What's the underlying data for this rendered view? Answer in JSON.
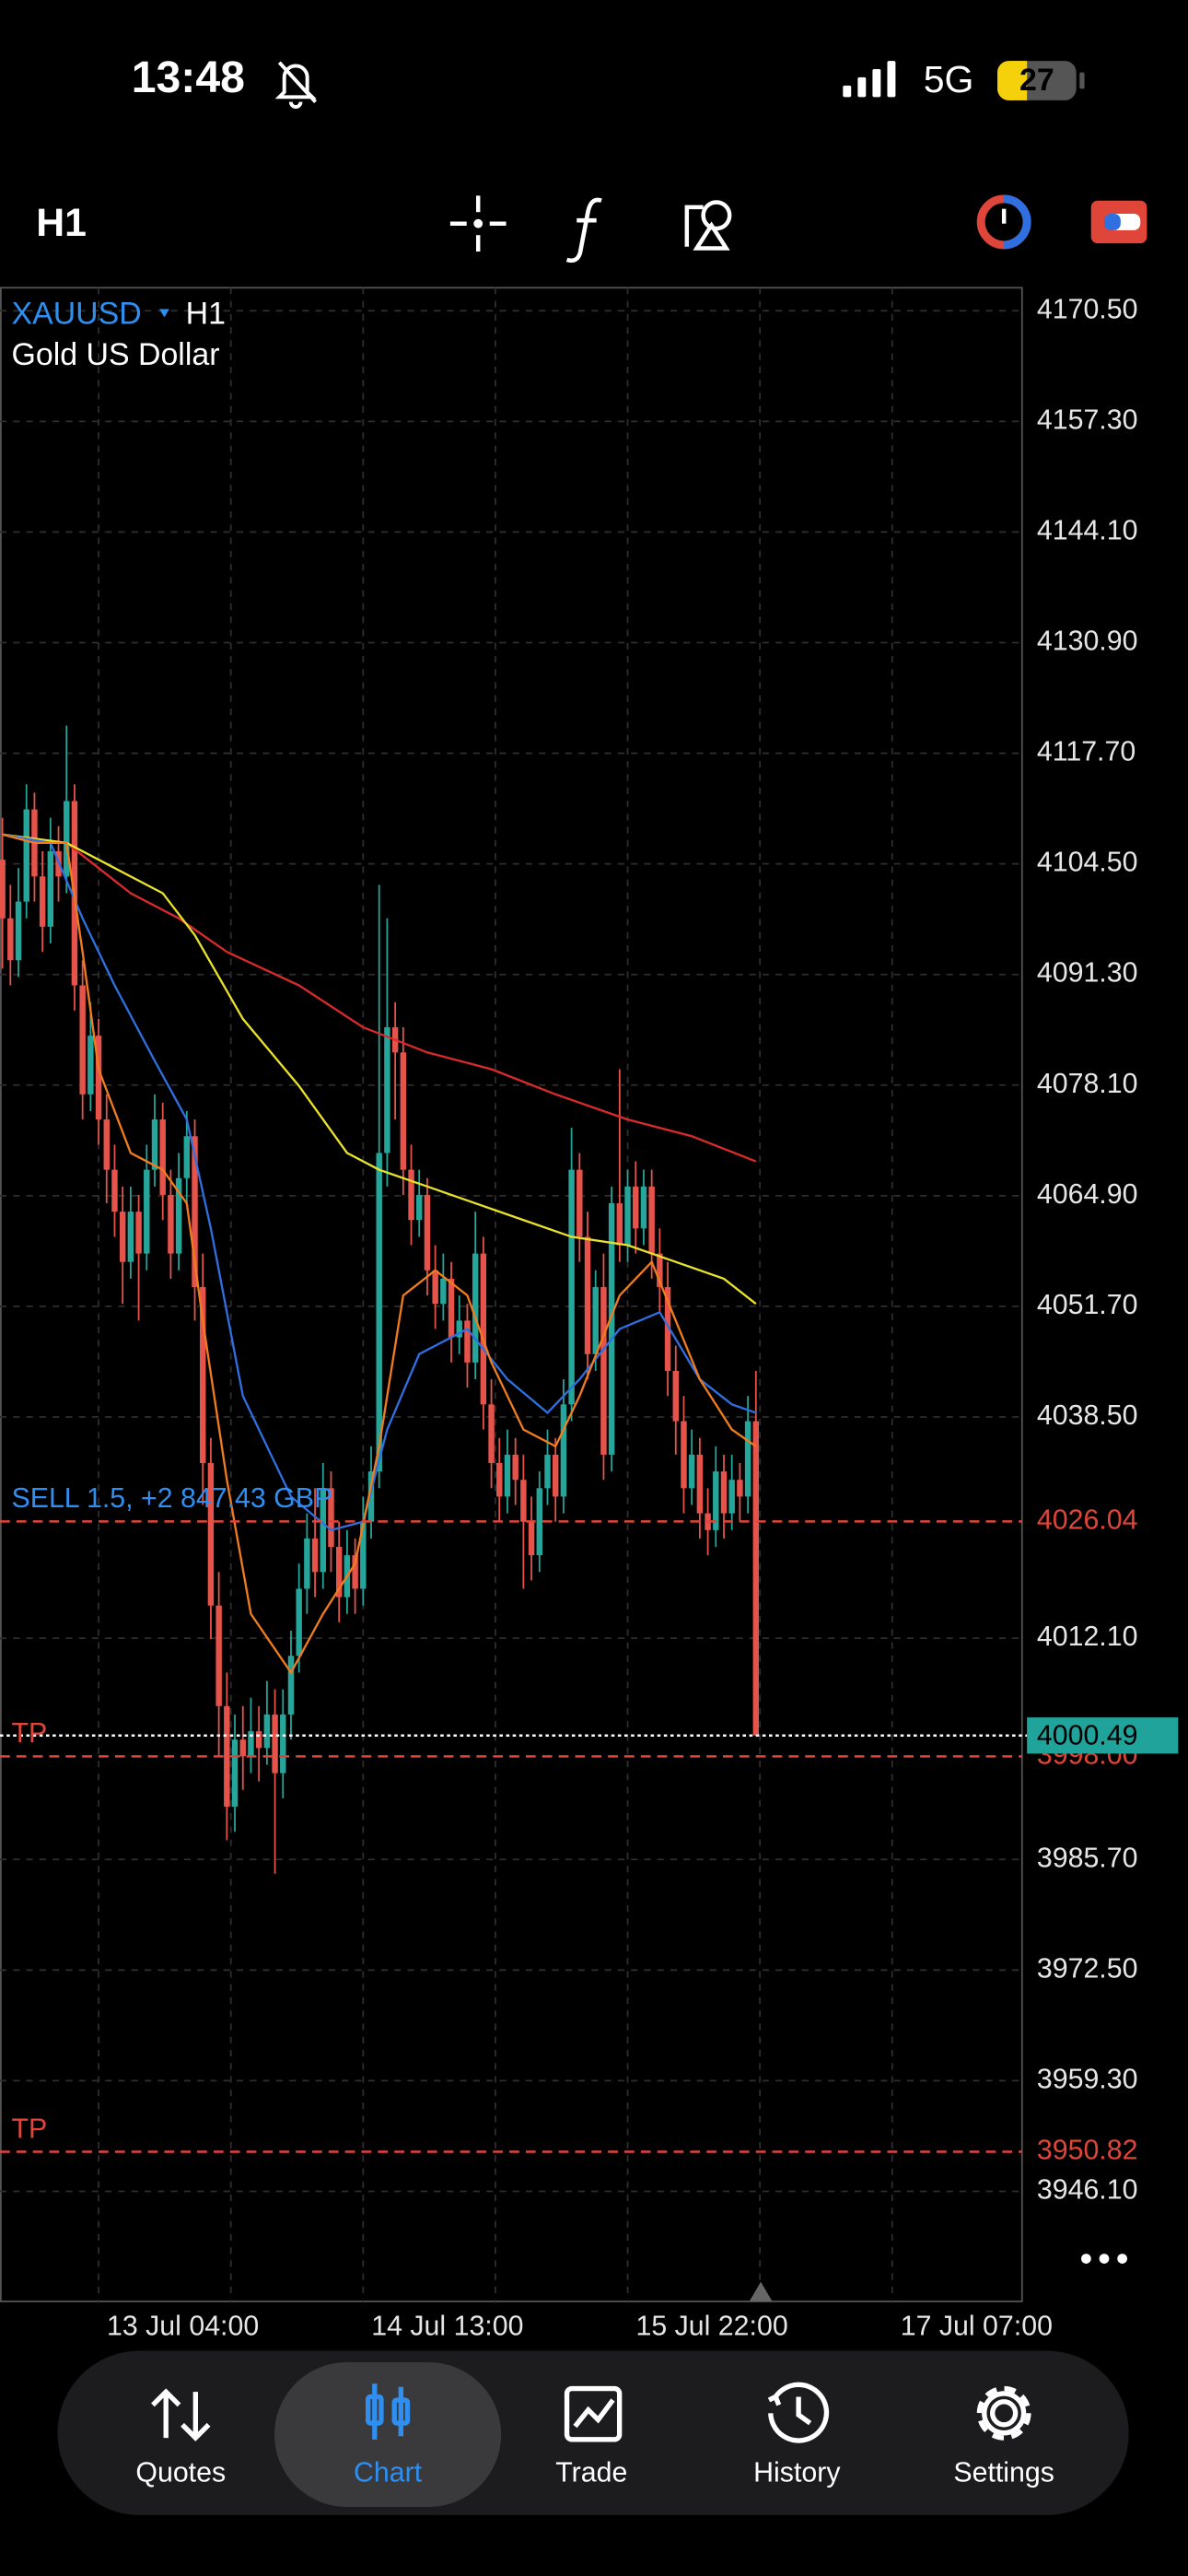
{
  "status_bar": {
    "time": "13:48",
    "network": "5G",
    "battery": "27"
  },
  "toolbar": {
    "timeframe": "H1"
  },
  "chart_data": {
    "type": "candlestick",
    "symbol": "XAUUSD",
    "timeframe": "H1",
    "subtitle": "Gold US Dollar",
    "up_color": "#26a69a",
    "down_color": "#e5534b",
    "grid": true,
    "x": [
      -12,
      -11,
      -10,
      -9,
      -8,
      -7,
      -6,
      -5,
      -4,
      -3,
      -2,
      -1,
      0,
      1,
      2,
      3,
      4,
      5,
      6,
      7,
      8,
      9,
      10,
      11,
      12,
      13,
      14,
      15,
      16,
      17,
      18,
      19,
      20,
      21,
      22,
      23,
      24,
      25,
      26,
      27,
      28,
      29,
      30,
      31,
      32,
      33,
      34,
      35,
      36,
      37,
      38,
      39,
      40,
      41,
      42,
      43,
      44,
      45,
      46,
      47,
      48,
      49,
      50,
      51,
      52,
      53,
      54,
      55,
      56,
      57,
      58,
      59,
      60,
      61,
      62,
      63,
      64,
      65,
      66,
      67,
      68,
      69,
      70,
      71,
      72,
      73,
      74,
      75,
      76,
      77,
      78,
      79,
      80,
      81,
      82
    ],
    "open": [
      4105,
      4098,
      4093,
      4100,
      4111,
      4103,
      4097,
      4106,
      4103,
      4112,
      4090,
      4077,
      4084,
      4074,
      4068,
      4063,
      4057,
      4063,
      4058,
      4068,
      4074,
      4065,
      4058,
      4067,
      4072,
      4054,
      4033,
      4016,
      4004,
      3992,
      4000,
      3998,
      4001,
      3999,
      4003,
      3996,
      4003,
      4010,
      4018,
      4024,
      4020,
      4030,
      4023,
      4017,
      4022,
      4018,
      4026,
      4032,
      4070,
      4085,
      4082,
      4068,
      4062,
      4065,
      4056,
      4052,
      4055,
      4048,
      4050,
      4045,
      4058,
      4040,
      4033,
      4029,
      4034,
      4031,
      4026,
      4022,
      4030,
      4034,
      4029,
      4040,
      4068,
      4060,
      4046,
      4054,
      4034,
      4064,
      4059,
      4066,
      4061,
      4066,
      4058,
      4054,
      4044,
      4038,
      4030,
      4034,
      4027,
      4025,
      4032,
      4027,
      4031,
      4029,
      4038
    ],
    "high": [
      4110,
      4102,
      4104,
      4114,
      4113,
      4106,
      4110,
      4109,
      4121,
      4114,
      4093,
      4088,
      4086,
      4077,
      4071,
      4066,
      4066,
      4065,
      4071,
      4077,
      4076,
      4068,
      4070,
      4075,
      4074,
      4058,
      4036,
      4020,
      4008,
      4003,
      4004,
      4005,
      4004,
      4007,
      4006,
      4006,
      4013,
      4021,
      4027,
      4030,
      4033,
      4032,
      4026,
      4025,
      4024,
      4029,
      4035,
      4102,
      4098,
      4088,
      4085,
      4071,
      4068,
      4067,
      4059,
      4058,
      4057,
      4053,
      4052,
      4063,
      4060,
      4043,
      4036,
      4037,
      4036,
      4034,
      4029,
      4032,
      4037,
      4036,
      4043,
      4073,
      4070,
      4063,
      4056,
      4058,
      4066,
      4080,
      4068,
      4069,
      4068,
      4068,
      4061,
      4057,
      4047,
      4041,
      4037,
      4036,
      4030,
      4035,
      4034,
      4034,
      4033,
      4041,
      4044
    ],
    "low": [
      4092,
      4090,
      4091,
      4098,
      4100,
      4094,
      4095,
      4100,
      4101,
      4087,
      4074,
      4075,
      4071,
      4064,
      4060,
      4052,
      4055,
      4050,
      4056,
      4066,
      4062,
      4055,
      4056,
      4064,
      4050,
      4028,
      4012,
      3998,
      3988,
      3989,
      3994,
      3996,
      3995,
      3997,
      3984,
      3993,
      4000,
      4008,
      4015,
      4017,
      4018,
      4020,
      4014,
      4015,
      4015,
      4016,
      4024,
      4030,
      4066,
      4074,
      4065,
      4059,
      4060,
      4053,
      4049,
      4050,
      4045,
      4046,
      4042,
      4043,
      4037,
      4030,
      4026,
      4027,
      4028,
      4018,
      4019,
      4020,
      4028,
      4026,
      4027,
      4038,
      4057,
      4043,
      4044,
      4031,
      4032,
      4057,
      4057,
      4058,
      4059,
      4055,
      4051,
      4041,
      4034,
      4027,
      4028,
      4024,
      4022,
      4023,
      4024,
      4025,
      4026,
      4027,
      4000.49
    ],
    "close": [
      4098,
      4093,
      4100,
      4111,
      4103,
      4097,
      4106,
      4103,
      4112,
      4090,
      4077,
      4084,
      4074,
      4068,
      4063,
      4057,
      4063,
      4058,
      4068,
      4074,
      4065,
      4058,
      4067,
      4072,
      4054,
      4033,
      4016,
      4004,
      3992,
      4000,
      3998,
      4001,
      3999,
      4003,
      3996,
      4003,
      4010,
      4018,
      4024,
      4020,
      4030,
      4023,
      4017,
      4022,
      4018,
      4026,
      4032,
      4070,
      4085,
      4082,
      4068,
      4062,
      4065,
      4056,
      4052,
      4055,
      4048,
      4050,
      4045,
      4058,
      4040,
      4033,
      4029,
      4034,
      4031,
      4026,
      4022,
      4030,
      4034,
      4029,
      4040,
      4068,
      4060,
      4046,
      4054,
      4034,
      4064,
      4059,
      4066,
      4061,
      4066,
      4058,
      4054,
      4044,
      4038,
      4030,
      4034,
      4027,
      4025,
      4032,
      4027,
      4031,
      4029,
      4038,
      4000.49
    ],
    "series": [
      {
        "color": "#d92b2b",
        "x": [
          -12,
          -4,
          4,
          10,
          16,
          25,
          33,
          41,
          49,
          57,
          66,
          74,
          82
        ],
        "values": [
          4108,
          4107,
          4101,
          4098,
          4094,
          4090,
          4085,
          4082,
          4080,
          4077,
          4074,
          4072,
          4069
        ]
      },
      {
        "color": "#e8e32a",
        "x": [
          -12,
          -4,
          2,
          8,
          12,
          18,
          25,
          31,
          35,
          41,
          47,
          53,
          59,
          66,
          72,
          78,
          82
        ],
        "values": [
          4108,
          4107,
          4104,
          4101,
          4096,
          4086,
          4078,
          4070,
          4068,
          4066,
          4064,
          4062,
          4060,
          4059,
          4057,
          4055,
          4052
        ]
      },
      {
        "color": "#2f6fe0",
        "x": [
          -12,
          -6,
          -2,
          2,
          7,
          11,
          14,
          18,
          24,
          29,
          33,
          36,
          40,
          46,
          51,
          56,
          60,
          65,
          70,
          75,
          79,
          82
        ],
        "values": [
          4108,
          4107,
          4098,
          4090,
          4081,
          4074,
          4061,
          4041,
          4029,
          4025,
          4026,
          4037,
          4046,
          4049,
          4043,
          4039,
          4043,
          4049,
          4051,
          4043,
          4040,
          4039
        ]
      },
      {
        "color": "#f07c1e",
        "x": [
          -12,
          -8,
          -4,
          -2,
          0,
          4,
          8,
          11,
          13,
          16,
          19,
          24,
          28,
          32,
          35,
          38,
          42,
          46,
          49,
          53,
          57,
          60,
          65,
          69,
          72,
          75,
          79,
          82
        ],
        "values": [
          4108,
          4107,
          4107,
          4094,
          4080,
          4070,
          4068,
          4064,
          4050,
          4031,
          4015,
          4008,
          4015,
          4021,
          4035,
          4053,
          4056,
          4053,
          4045,
          4037,
          4035,
          4041,
          4053,
          4057,
          4050,
          4043,
          4037,
          4035
        ]
      }
    ],
    "xlim": [
      -12.3,
      115.2
    ],
    "xticks": [
      {
        "value": 0,
        "label": "13 Jul 04:00"
      },
      {
        "value": 16.5,
        "label": null
      },
      {
        "value": 33,
        "label": "14 Jul 13:00"
      },
      {
        "value": 49.5,
        "label": null
      },
      {
        "value": 66,
        "label": "15 Jul 22:00"
      },
      {
        "value": 82.5,
        "label": null
      },
      {
        "value": 99,
        "label": "17 Jul 07:00"
      }
    ],
    "ylim": [
      3932.96,
      4173.25
    ],
    "yticks": [
      {
        "value": 4170.5,
        "label": "4170.50"
      },
      {
        "value": 4157.3,
        "label": "4157.30"
      },
      {
        "value": 4144.1,
        "label": "4144.10"
      },
      {
        "value": 4130.9,
        "label": "4130.90"
      },
      {
        "value": 4117.7,
        "label": "4117.70"
      },
      {
        "value": 4104.5,
        "label": "4104.50"
      },
      {
        "value": 4091.3,
        "label": "4091.30"
      },
      {
        "value": 4078.1,
        "label": "4078.10"
      },
      {
        "value": 4064.9,
        "label": "4064.90"
      },
      {
        "value": 4051.7,
        "label": "4051.70"
      },
      {
        "value": 4038.5,
        "label": "4038.50"
      },
      {
        "value": 4012.1,
        "label": "4012.10"
      },
      {
        "value": 3985.7,
        "label": "3985.70"
      },
      {
        "value": 3972.5,
        "label": "3972.50"
      },
      {
        "value": 3959.3,
        "label": "3959.30"
      },
      {
        "value": 3946.1,
        "label": "3946.10"
      }
    ],
    "levels": [
      {
        "label": "SELL 1.5, +2 847.43 GBP",
        "price": 4026.04,
        "color": "#e0453a",
        "label_color": "#2e8ff0"
      },
      {
        "label": "TP",
        "price": 3998,
        "price_label": "3998.00",
        "color": "#e0453a",
        "label_color": "#e0453a"
      },
      {
        "label": "TP",
        "price": 3950.82,
        "color": "#e0453a",
        "label_color": "#e0453a"
      }
    ],
    "current_price": 4000.49,
    "current_price_color": "#1fa39a"
  },
  "tab_bar": {
    "tabs": [
      "Quotes",
      "Chart",
      "Trade",
      "History",
      "Settings"
    ],
    "active": 1
  }
}
